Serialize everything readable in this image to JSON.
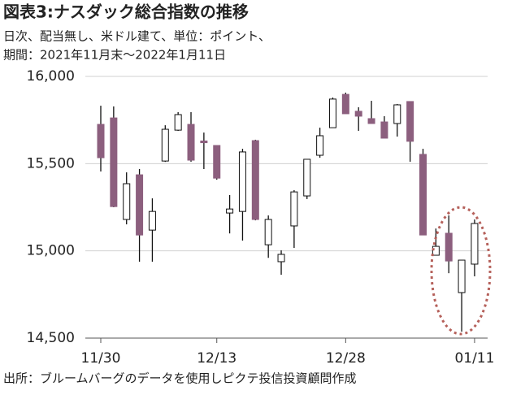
{
  "chart_data": {
    "type": "candlestick",
    "title": "図表3:ナスダック総合指数の推移",
    "subtitle": [
      "日次、配当無し、米ドル建て、単位：ポイント、",
      "期間：2021年11月末～2022年1月11日"
    ],
    "source": "出所：ブルームバーグのデータを使用しピクテ投信投資顧問作成",
    "categories": [
      "11/30",
      null,
      null,
      null,
      null,
      null,
      null,
      null,
      null,
      "12/13",
      null,
      null,
      null,
      null,
      null,
      null,
      null,
      null,
      null,
      "12/28",
      null,
      null,
      null,
      null,
      null,
      null,
      null,
      null,
      null,
      "01/11"
    ],
    "open": [
      15725,
      15762,
      15180,
      15436,
      15119,
      15515,
      15692,
      15725,
      15630,
      15604,
      15217,
      15226,
      15632,
      15035,
      14938,
      15143,
      15315,
      15548,
      15706,
      15897,
      15800,
      15758,
      15739,
      15730,
      15856,
      15553,
      14975,
      15101,
      14761,
      14924
    ],
    "high": [
      15832,
      15828,
      15450,
      15469,
      15301,
      15720,
      15795,
      15795,
      15678,
      15605,
      15320,
      15585,
      15637,
      15203,
      15003,
      15348,
      15525,
      15706,
      15879,
      15907,
      15823,
      15860,
      15772,
      15842,
      15856,
      15585,
      15128,
      15203,
      14947,
      15180
    ],
    "low": [
      15455,
      15250,
      15152,
      14938,
      14938,
      15510,
      15688,
      15511,
      15469,
      15408,
      15100,
      15059,
      15175,
      14960,
      14863,
      15017,
      15297,
      15534,
      15706,
      15786,
      15688,
      15730,
      15646,
      15655,
      15511,
      15091,
      14975,
      14872,
      14537,
      14854
    ],
    "close": [
      15534,
      15254,
      15385,
      15091,
      15226,
      15697,
      15781,
      15520,
      15620,
      15417,
      15240,
      15567,
      15180,
      15180,
      14980,
      15338,
      15525,
      15660,
      15870,
      15786,
      15772,
      15730,
      15646,
      15837,
      15628,
      15091,
      15026,
      14942,
      14947,
      15157
    ],
    "up_color": "#ffffff",
    "down_color": "#8c5f7e",
    "ylim": [
      14500,
      16000
    ],
    "yticks": [
      {
        "value": 14500,
        "label": "14,500"
      },
      {
        "value": 15000,
        "label": "15,000"
      },
      {
        "value": 15500,
        "label": "15,500"
      },
      {
        "value": 16000,
        "label": "16,000"
      }
    ],
    "grid": true
  }
}
